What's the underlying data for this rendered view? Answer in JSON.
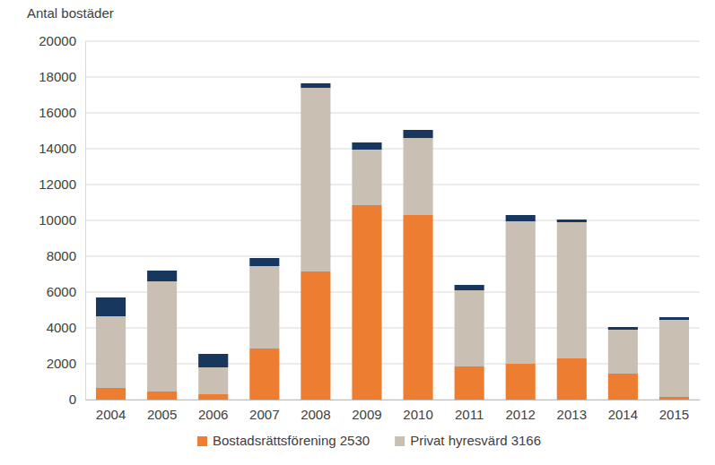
{
  "chart_data": {
    "type": "bar",
    "stacked": true,
    "ylabel": "Antal bostäder",
    "categories": [
      "2004",
      "2005",
      "2006",
      "2007",
      "2008",
      "2009",
      "2010",
      "2011",
      "2012",
      "2013",
      "2014",
      "2015"
    ],
    "series": [
      {
        "name": "Bostadsrättsförening 2530",
        "color": "#ed7d31",
        "values": [
          650,
          450,
          300,
          2850,
          7150,
          10850,
          10300,
          1850,
          2000,
          2300,
          1450,
          150
        ]
      },
      {
        "name": "Privat hyresvärd 3166",
        "color": "#c9bfb3",
        "values": [
          4000,
          6150,
          1500,
          4600,
          10250,
          3100,
          4300,
          4250,
          7950,
          7600,
          2450,
          4300
        ]
      },
      {
        "name": null,
        "color": "#17375e",
        "values": [
          1050,
          600,
          750,
          450,
          250,
          400,
          450,
          300,
          350,
          150,
          150,
          150
        ]
      }
    ],
    "ylim": [
      0,
      20000
    ],
    "yticks": [
      0,
      2000,
      4000,
      6000,
      8000,
      10000,
      12000,
      14000,
      16000,
      18000,
      20000
    ],
    "grid": true,
    "legend": "bottom"
  }
}
